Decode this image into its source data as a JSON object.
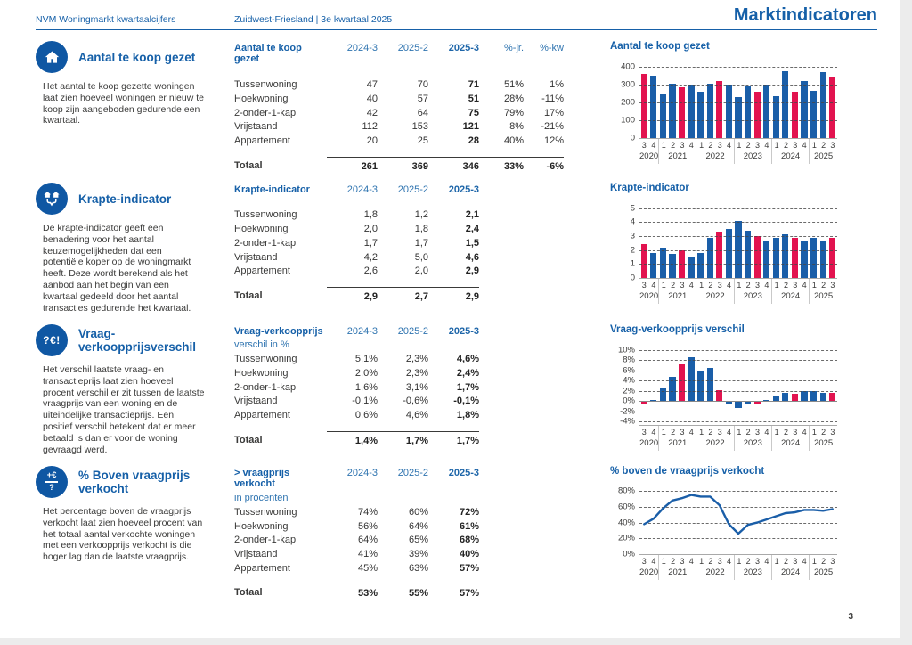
{
  "page": {
    "header_left": "NVM Woningmarkt kwartaalcijfers",
    "header_center": "Zuidwest-Friesland | 3e kwartaal 2025",
    "header_title": "Marktindicatoren",
    "page_number": "3"
  },
  "colors": {
    "brand_blue": "#1660a8",
    "column_header_blue": "#2f74b0",
    "bar_blue": "#1a5ea8",
    "bar_pink": "#e2134f",
    "text": "#3a3a39",
    "gridline": "#6e6e6e",
    "axis": "#a9a9a9"
  },
  "timeline": {
    "quarters": [
      "3",
      "4",
      "1",
      "2",
      "3",
      "4",
      "1",
      "2",
      "3",
      "4",
      "1",
      "2",
      "3",
      "4",
      "1",
      "2",
      "3",
      "4",
      "1",
      "2",
      "3"
    ],
    "year_groups": [
      {
        "year": "2020",
        "count": 2
      },
      {
        "year": "2021",
        "count": 4
      },
      {
        "year": "2022",
        "count": 4
      },
      {
        "year": "2023",
        "count": 4
      },
      {
        "year": "2024",
        "count": 4
      },
      {
        "year": "2025",
        "count": 3
      }
    ]
  },
  "sections": [
    {
      "id": "aantal-te-koop-gezet",
      "icon": "house-icon",
      "title": "Aantal te koop gezet",
      "description": "Het aantal te koop gezette woningen laat zien hoeveel woningen er nieuw te koop zijn aangeboden gedurende een kwartaal.",
      "table": {
        "header": "Aantal te koop gezet",
        "subheader": "",
        "columns": [
          "2024-3",
          "2025-2",
          "2025-3",
          "%-jr.",
          "%-kw"
        ],
        "rows": [
          {
            "label": "Tussenwoning",
            "values": [
              "47",
              "70",
              "71",
              "51%",
              "1%"
            ]
          },
          {
            "label": "Hoekwoning",
            "values": [
              "40",
              "57",
              "51",
              "28%",
              "-11%"
            ]
          },
          {
            "label": "2-onder-1-kap",
            "values": [
              "42",
              "64",
              "75",
              "79%",
              "17%"
            ]
          },
          {
            "label": "Vrijstaand",
            "values": [
              "112",
              "153",
              "121",
              "8%",
              "-21%"
            ]
          },
          {
            "label": "Appartement",
            "values": [
              "20",
              "25",
              "28",
              "40%",
              "12%"
            ]
          }
        ],
        "total": {
          "label": "Totaal",
          "values": [
            "261",
            "369",
            "346",
            "33%",
            "-6%"
          ]
        }
      }
    },
    {
      "id": "krapte-indicator",
      "icon": "houses-merge-icon",
      "title": "Krapte-indicator",
      "description": "De krapte-indicator geeft een benadering voor het aantal keuzemogelijkheden dat een potentiële koper op de woningmarkt heeft. Deze wordt berekend als het aanbod aan het begin van een kwartaal gedeeld door het aantal transacties gedurende het kwartaal.",
      "table": {
        "header": "Krapte-indicator",
        "subheader": "",
        "columns": [
          "2024-3",
          "2025-2",
          "2025-3"
        ],
        "rows": [
          {
            "label": "Tussenwoning",
            "values": [
              "1,8",
              "1,2",
              "2,1"
            ]
          },
          {
            "label": "Hoekwoning",
            "values": [
              "2,0",
              "1,8",
              "2,4"
            ]
          },
          {
            "label": "2-onder-1-kap",
            "values": [
              "1,7",
              "1,7",
              "1,5"
            ]
          },
          {
            "label": "Vrijstaand",
            "values": [
              "4,2",
              "5,0",
              "4,6"
            ]
          },
          {
            "label": "Appartement",
            "values": [
              "2,6",
              "2,0",
              "2,9"
            ]
          }
        ],
        "total": {
          "label": "Totaal",
          "values": [
            "2,9",
            "2,7",
            "2,9"
          ]
        }
      }
    },
    {
      "id": "vraag-verkoopprijsverschil",
      "icon": "price-question-icon",
      "title": "Vraag-verkoopprijsverschil",
      "description": "Het verschil laatste vraag- en transactieprijs laat zien hoeveel procent verschil er zit tussen de laatste vraagprijs van een woning en de uiteindelijke transactieprijs. Een positief verschil betekent dat er meer betaald is dan er voor de woning gevraagd werd.",
      "table": {
        "header": "Vraag-verkoopprijs",
        "subheader": "verschil in %",
        "columns": [
          "2024-3",
          "2025-2",
          "2025-3"
        ],
        "rows": [
          {
            "label": "Tussenwoning",
            "values": [
              "5,1%",
              "2,3%",
              "4,6%"
            ]
          },
          {
            "label": "Hoekwoning",
            "values": [
              "2,0%",
              "2,3%",
              "2,4%"
            ]
          },
          {
            "label": "2-onder-1-kap",
            "values": [
              "1,6%",
              "3,1%",
              "1,7%"
            ]
          },
          {
            "label": "Vrijstaand",
            "values": [
              "-0,1%",
              "-0,6%",
              "-0,1%"
            ]
          },
          {
            "label": "Appartement",
            "values": [
              "0,6%",
              "4,6%",
              "1,8%"
            ]
          }
        ],
        "total": {
          "label": "Totaal",
          "values": [
            "1,4%",
            "1,7%",
            "1,7%"
          ]
        }
      }
    },
    {
      "id": "boven-vraagprijs-verkocht",
      "icon": "formula-icon",
      "title": "% Boven vraagprijs verkocht",
      "description": "Het percentage boven de vraagprijs verkocht laat zien hoeveel procent van het totaal aantal verkochte woningen met een verkoopprijs verkocht is die hoger lag dan de laatste vraagprijs.",
      "table": {
        "header": "> vraagprijs verkocht",
        "subheader": "in procenten",
        "columns": [
          "2024-3",
          "2025-2",
          "2025-3"
        ],
        "rows": [
          {
            "label": "Tussenwoning",
            "values": [
              "74%",
              "60%",
              "72%"
            ]
          },
          {
            "label": "Hoekwoning",
            "values": [
              "56%",
              "64%",
              "61%"
            ]
          },
          {
            "label": "2-onder-1-kap",
            "values": [
              "64%",
              "65%",
              "68%"
            ]
          },
          {
            "label": "Vrijstaand",
            "values": [
              "41%",
              "39%",
              "40%"
            ]
          },
          {
            "label": "Appartement",
            "values": [
              "45%",
              "63%",
              "57%"
            ]
          }
        ],
        "total": {
          "label": "Totaal",
          "values": [
            "53%",
            "55%",
            "57%"
          ]
        }
      }
    }
  ],
  "chart_data": [
    {
      "type": "bar",
      "title": "Aantal te koop gezet",
      "x": "quarters 2020-Q3 t/m 2025-Q3",
      "values": [
        360,
        350,
        250,
        303,
        283,
        297,
        260,
        303,
        318,
        298,
        228,
        287,
        257,
        300,
        232,
        375,
        261,
        320,
        265,
        369,
        346
      ],
      "ylim": [
        0,
        400
      ],
      "yticks": [
        0,
        100,
        200,
        300,
        400
      ],
      "tick_suffix": "",
      "grid": "dashed horizontal",
      "highlight": "Q3 bars pink, other quarters blue"
    },
    {
      "type": "bar",
      "title": "Krapte-indicator",
      "x": "quarters 2020-Q3 t/m 2025-Q3",
      "values": [
        2.4,
        1.8,
        2.2,
        1.7,
        2.0,
        1.5,
        1.8,
        2.9,
        3.3,
        3.5,
        4.1,
        3.4,
        3.0,
        2.7,
        2.9,
        3.1,
        2.9,
        2.7,
        2.9,
        2.7,
        2.9
      ],
      "ylim": [
        0,
        5
      ],
      "yticks": [
        0,
        1,
        2,
        3,
        4,
        5
      ],
      "tick_suffix": "",
      "grid": "dashed horizontal",
      "highlight": "Q3 bars pink, other quarters blue"
    },
    {
      "type": "bar",
      "title": "Vraag-verkoopprijs verschil",
      "x": "quarters 2020-Q3 t/m 2025-Q3",
      "values": [
        -0.7,
        0.3,
        2.5,
        4.8,
        7.2,
        8.5,
        5.9,
        6.4,
        2.2,
        -0.4,
        -1.3,
        -0.7,
        -0.5,
        0.2,
        1.0,
        1.7,
        1.4,
        2.0,
        2.0,
        1.7,
        1.7
      ],
      "ylim": [
        -4,
        10
      ],
      "yticks": [
        -4,
        -2,
        0,
        2,
        4,
        6,
        8,
        10
      ],
      "tick_suffix": "%",
      "grid": "dashed horizontal, solid zero line",
      "highlight": "Q3 bars pink, other quarters blue"
    },
    {
      "type": "line",
      "title": "% boven de vraagprijs verkocht",
      "x": "quarters 2020-Q3 t/m 2025-Q3",
      "values": [
        38,
        45,
        58,
        68,
        71,
        75,
        73,
        73,
        62,
        38,
        26,
        37,
        40,
        44,
        48,
        52,
        53,
        56,
        56,
        55,
        57
      ],
      "ylim": [
        0,
        80
      ],
      "yticks": [
        0,
        20,
        40,
        60,
        80
      ],
      "tick_suffix": "%",
      "grid": "dashed horizontal",
      "highlight": "single blue trend line"
    }
  ]
}
